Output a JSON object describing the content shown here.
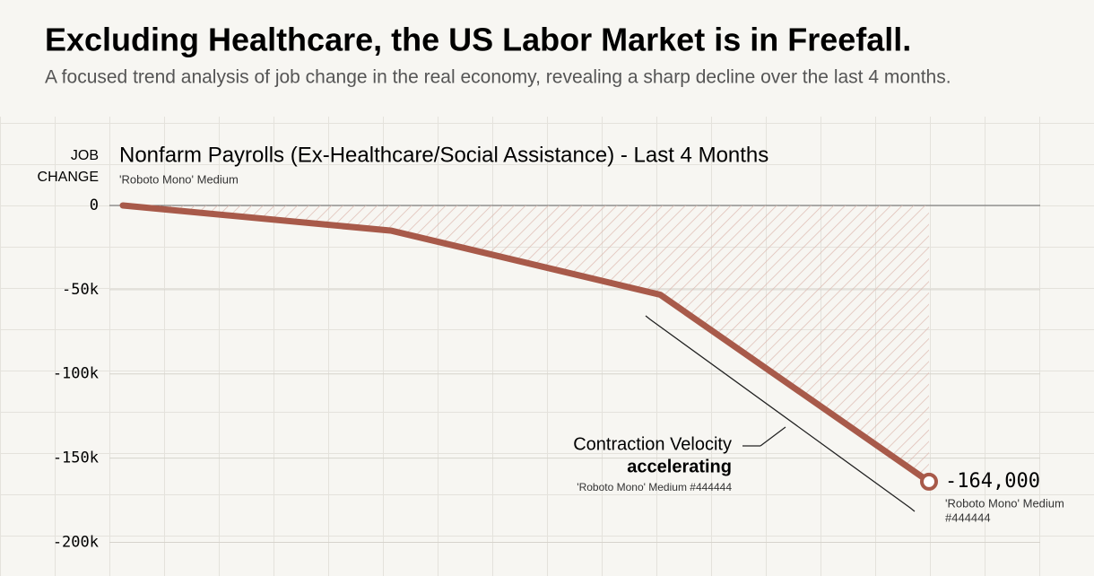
{
  "chart_data": {
    "type": "line",
    "title": "Excluding Healthcare, the US Labor Market is in Freefall.",
    "subtitle": "A focused trend analysis of job change in the real economy, revealing a sharp decline over the last 4 months.",
    "chart_title": "Nonfarm Payrolls (Ex-Healthcare/Social Assistance) - Last 4 Months",
    "y_label": [
      "JOB",
      "CHANGE"
    ],
    "categories": [
      null,
      null,
      null,
      null
    ],
    "values": [
      0,
      -15000,
      -53000,
      -164000
    ],
    "value_labels": [
      null,
      null,
      null,
      "-164,000"
    ],
    "color": "#a85a4a",
    "ylim": [
      -220000,
      0
    ],
    "yticks": [
      0,
      {
        "value": -50000,
        "label": "-50k"
      },
      {
        "value": -100000,
        "label": "-100k"
      },
      {
        "value": -150000,
        "label": "-150k"
      },
      {
        "value": -200000,
        "label": "-200k"
      }
    ],
    "annotations": {
      "title_note": "'Roboto Mono' Medium",
      "callout": "Contraction Velocity",
      "callout_emphasis": "accelerating",
      "callout_note": "'Roboto Mono' Medium #444444",
      "end_note": [
        "'Roboto Mono' Medium",
        "#444444"
      ]
    }
  }
}
